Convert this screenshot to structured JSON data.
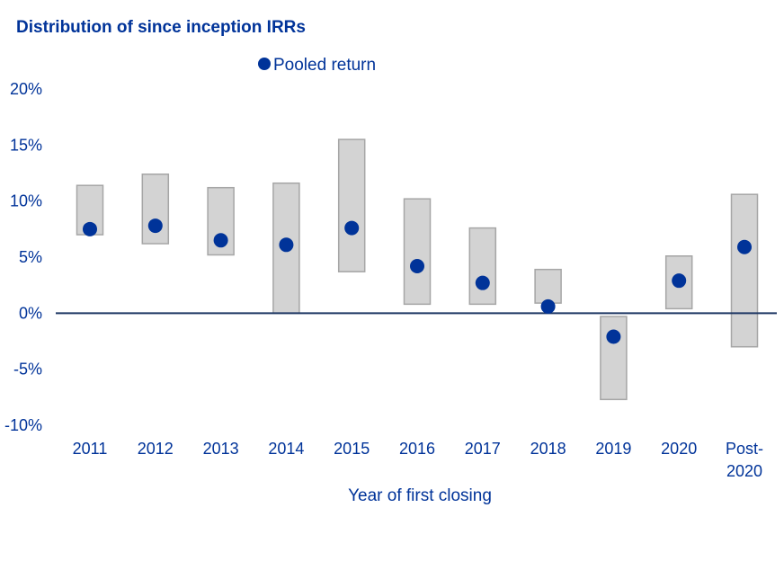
{
  "chart_data": {
    "type": "range-bar with dots",
    "title": "Distribution of since inception IRRs",
    "xlabel": "Year of first closing",
    "ylabel": "",
    "ylim": [
      -10,
      20
    ],
    "yticks": [
      "20%",
      "15%",
      "10%",
      "5%",
      "0%",
      "-5%",
      "-10%"
    ],
    "ytick_values": [
      20,
      15,
      10,
      5,
      0,
      -5,
      -10
    ],
    "categories": [
      [
        "2011"
      ],
      [
        "2012"
      ],
      [
        "2013"
      ],
      [
        "2014"
      ],
      [
        "2015"
      ],
      [
        "2016"
      ],
      [
        "2017"
      ],
      [
        "2018"
      ],
      [
        "2019"
      ],
      [
        "2020"
      ],
      [
        "Post-",
        "2020"
      ]
    ],
    "ranges": [
      [
        7.0,
        11.4
      ],
      [
        6.2,
        12.4
      ],
      [
        5.2,
        11.2
      ],
      [
        0.0,
        11.6
      ],
      [
        3.7,
        15.5
      ],
      [
        0.8,
        10.2
      ],
      [
        0.8,
        7.6
      ],
      [
        0.9,
        3.9
      ],
      [
        -7.7,
        -0.3
      ],
      [
        0.4,
        5.1
      ],
      [
        -3.0,
        10.6
      ]
    ],
    "series": [
      {
        "name": "Pooled return",
        "values": [
          7.5,
          7.8,
          6.5,
          6.1,
          7.6,
          4.2,
          2.7,
          0.6,
          -2.1,
          2.9,
          5.9
        ]
      }
    ],
    "legend": {
      "position": "top",
      "entries": [
        "Pooled return"
      ]
    },
    "colors": {
      "accent": "#003399",
      "bar_fill": "#d3d3d3",
      "bar_stroke": "#a6a6a6",
      "zero_line": "#1f3864"
    },
    "grid": false
  }
}
